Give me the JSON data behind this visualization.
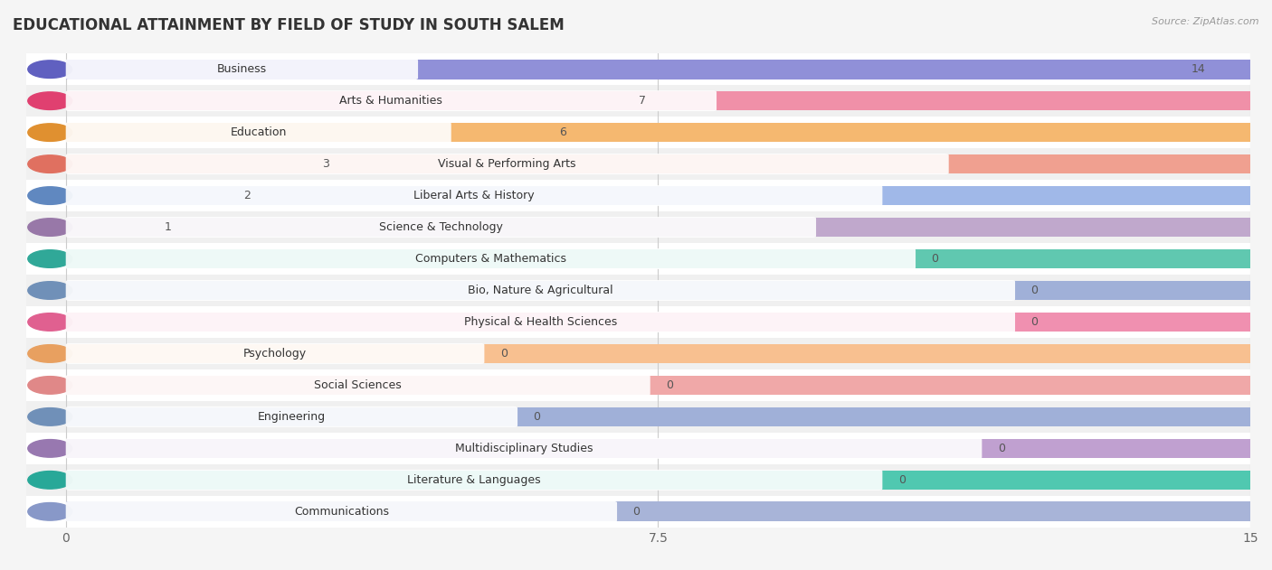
{
  "title": "EDUCATIONAL ATTAINMENT BY FIELD OF STUDY IN SOUTH SALEM",
  "source": "Source: ZipAtlas.com",
  "categories": [
    "Business",
    "Arts & Humanities",
    "Education",
    "Visual & Performing Arts",
    "Liberal Arts & History",
    "Science & Technology",
    "Computers & Mathematics",
    "Bio, Nature & Agricultural",
    "Physical & Health Sciences",
    "Psychology",
    "Social Sciences",
    "Engineering",
    "Multidisciplinary Studies",
    "Literature & Languages",
    "Communications"
  ],
  "values": [
    14,
    7,
    6,
    3,
    2,
    1,
    0,
    0,
    0,
    0,
    0,
    0,
    0,
    0,
    0
  ],
  "bar_colors": [
    "#9090d8",
    "#f090a8",
    "#f5b870",
    "#f0a090",
    "#a0b8e8",
    "#c0a8cc",
    "#60c8b0",
    "#a0b0d8",
    "#f090b0",
    "#f8c090",
    "#f0a8a8",
    "#a0b0d8",
    "#c0a0d0",
    "#50c8b0",
    "#a8b4d8"
  ],
  "dot_colors": [
    "#6060c0",
    "#e04070",
    "#e09030",
    "#e07060",
    "#6088c0",
    "#9878a8",
    "#30a898",
    "#7090b8",
    "#e06090",
    "#e8a060",
    "#e08888",
    "#7090b8",
    "#9878b0",
    "#28a898",
    "#8898c8"
  ],
  "row_alt_colors": [
    "#ffffff",
    "#f0f0f0"
  ],
  "xlim_min": -0.5,
  "xlim_max": 15,
  "xticks": [
    0,
    7.5,
    15
  ],
  "background_color": "#f5f5f5",
  "bar_height": 0.62,
  "title_fontsize": 12,
  "label_fontsize": 9,
  "value_fontsize": 9
}
